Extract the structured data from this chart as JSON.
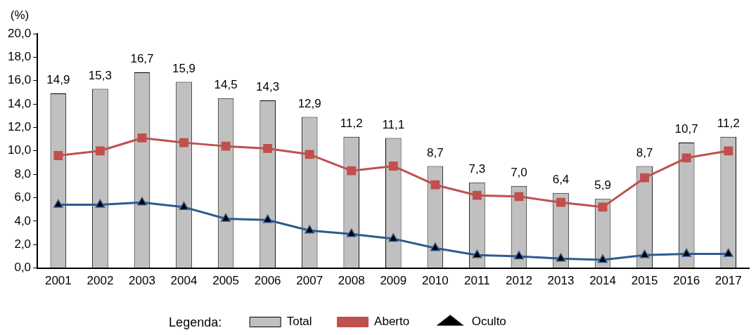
{
  "chart_data": {
    "type": "bar",
    "ylabel": "(%)",
    "legend_title": "Legenda:",
    "legend": "bottom",
    "grid": false,
    "categories": [
      "2001",
      "2002",
      "2003",
      "2004",
      "2005",
      "2006",
      "2007",
      "2008",
      "2009",
      "2010",
      "2011",
      "2012",
      "2013",
      "2014",
      "2015",
      "2016",
      "2017"
    ],
    "series": [
      {
        "name": "Total",
        "color": "#c0c0c0",
        "values": [
          14.9,
          15.3,
          16.7,
          15.9,
          14.5,
          14.3,
          12.9,
          11.2,
          11.1,
          8.7,
          7.3,
          7.0,
          6.4,
          5.9,
          8.7,
          10.7,
          11.2
        ],
        "value_labels": [
          "14,9",
          "15,3",
          "16,7",
          "15,9",
          "14,5",
          "14,3",
          "12,9",
          "11,2",
          "11,1",
          "8,7",
          "7,3",
          "7,0",
          "6,4",
          "5,9",
          "8,7",
          "10,7",
          "11,2"
        ]
      },
      {
        "name": "Aberto",
        "type": "line",
        "color": "#c0504d",
        "marker": "square",
        "values": [
          9.6,
          10.0,
          11.1,
          10.7,
          10.4,
          10.2,
          9.7,
          8.3,
          8.7,
          7.1,
          6.2,
          6.1,
          5.6,
          5.2,
          7.7,
          9.4,
          10.0
        ]
      },
      {
        "name": "Oculto",
        "type": "line",
        "color": "#2e5a8e",
        "marker": "triangle",
        "values": [
          5.4,
          5.4,
          5.6,
          5.2,
          4.2,
          4.1,
          3.2,
          2.9,
          2.5,
          1.7,
          1.1,
          1.0,
          0.8,
          0.7,
          1.1,
          1.2,
          1.2
        ]
      }
    ],
    "ylim": [
      0,
      20
    ],
    "yticks": [
      {
        "value": 0,
        "label": "0,0"
      },
      {
        "value": 2,
        "label": "2,0"
      },
      {
        "value": 4,
        "label": "4,0"
      },
      {
        "value": 6,
        "label": "6,0"
      },
      {
        "value": 8,
        "label": "8,0"
      },
      {
        "value": 10,
        "label": "10,0"
      },
      {
        "value": 12,
        "label": "12,0"
      },
      {
        "value": 14,
        "label": "14,0"
      },
      {
        "value": 16,
        "label": "16,0"
      },
      {
        "value": 18,
        "label": "18,0"
      },
      {
        "value": 20,
        "label": "20,0"
      }
    ]
  }
}
